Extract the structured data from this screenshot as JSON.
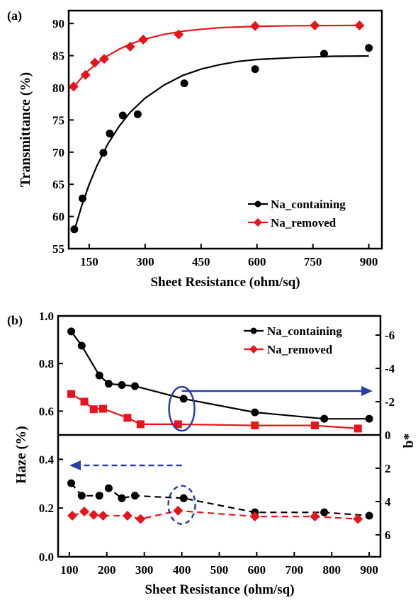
{
  "chart_data": [
    {
      "panel": "(a)",
      "type": "line",
      "xlabel": "Sheet Resistance (ohm/sq)",
      "ylabel": "Transmittance (%)",
      "xlim": [
        95,
        935
      ],
      "ylim": [
        55,
        92
      ],
      "xticks": [
        150,
        300,
        450,
        600,
        750,
        900
      ],
      "yticks": [
        55,
        60,
        65,
        70,
        75,
        80,
        85,
        90
      ],
      "legend_position": "bottom-right",
      "series": [
        {
          "name": "Na_containing",
          "color": "#000000",
          "marker": "circle",
          "points": [
            [
              110,
              58
            ],
            [
              132,
              62.8
            ],
            [
              188,
              69.9
            ],
            [
              205,
              72.9
            ],
            [
              240,
              75.7
            ],
            [
              280,
              75.9
            ],
            [
              405,
              80.7
            ],
            [
              595,
              82.9
            ],
            [
              780,
              85.3
            ],
            [
              900,
              86.2
            ]
          ],
          "fit": [
            [
              110,
              57.8
            ],
            [
              130,
              61.7
            ],
            [
              150,
              65.0
            ],
            [
              170,
              67.8
            ],
            [
              200,
              71.3
            ],
            [
              230,
              74.0
            ],
            [
              260,
              76.2
            ],
            [
              300,
              78.4
            ],
            [
              350,
              80.4
            ],
            [
              400,
              81.9
            ],
            [
              450,
              82.9
            ],
            [
              500,
              83.6
            ],
            [
              550,
              84.1
            ],
            [
              600,
              84.4
            ],
            [
              700,
              84.7
            ],
            [
              800,
              84.9
            ],
            [
              900,
              84.95
            ]
          ]
        },
        {
          "name": "Na_removed",
          "color": "#e8141b",
          "marker": "diamond",
          "points": [
            [
              108,
              80.2
            ],
            [
              140,
              82.0
            ],
            [
              165,
              83.9
            ],
            [
              190,
              84.5
            ],
            [
              260,
              86.4
            ],
            [
              295,
              87.5
            ],
            [
              390,
              88.3
            ],
            [
              595,
              89.6
            ],
            [
              755,
              89.7
            ],
            [
              875,
              89.7
            ]
          ],
          "fit": [
            [
              108,
              80.1
            ],
            [
              130,
              81.6
            ],
            [
              150,
              82.8
            ],
            [
              175,
              84.0
            ],
            [
              200,
              85.0
            ],
            [
              230,
              86.0
            ],
            [
              260,
              86.8
            ],
            [
              300,
              87.6
            ],
            [
              350,
              88.3
            ],
            [
              400,
              88.8
            ],
            [
              450,
              89.1
            ],
            [
              500,
              89.35
            ],
            [
              600,
              89.55
            ],
            [
              700,
              89.65
            ],
            [
              875,
              89.7
            ]
          ]
        }
      ]
    },
    {
      "panel": "(b)",
      "type": "line",
      "xlabel": "Sheet Resistance (ohm/sq)",
      "ylabel": "Haze (%)",
      "y2label": "b*",
      "xlim": [
        70,
        930
      ],
      "xticks": [
        100,
        200,
        300,
        400,
        500,
        600,
        700,
        800,
        900
      ],
      "legend_position": "top-right",
      "upper_left_yticks": [
        "0.6",
        "0.8",
        "1.0"
      ],
      "lower_left_yticks": [
        "0.0",
        "0.2",
        "0.4"
      ],
      "right_yticks": [
        "-6",
        "-4",
        "-2",
        "0",
        "2",
        "4",
        "6"
      ],
      "right_axis_range_top_to_bottom": [
        -7,
        7
      ],
      "series": [
        {
          "name": "Na_containing",
          "axis": "left (Haze, upper panel, solid)",
          "color": "#000000",
          "marker": "circle",
          "points": [
            [
              105,
              0.935
            ],
            [
              133,
              0.875
            ],
            [
              180,
              0.75
            ],
            [
              205,
              0.715
            ],
            [
              240,
              0.71
            ],
            [
              275,
              0.705
            ],
            [
              405,
              0.652
            ],
            [
              595,
              0.595
            ],
            [
              780,
              0.568
            ],
            [
              900,
              0.568
            ]
          ]
        },
        {
          "name": "Na_removed",
          "axis": "left (Haze, upper panel, solid)",
          "color": "#e8141b",
          "marker": "square",
          "points": [
            [
              105,
              0.672
            ],
            [
              140,
              0.64
            ],
            [
              165,
              0.608
            ],
            [
              190,
              0.61
            ],
            [
              255,
              0.572
            ],
            [
              290,
              0.545
            ],
            [
              390,
              0.545
            ],
            [
              595,
              0.54
            ],
            [
              755,
              0.54
            ],
            [
              870,
              0.527
            ]
          ]
        },
        {
          "name": "Na_containing b*",
          "axis": "right (b*, lower panel, dashed)",
          "color": "#000000",
          "marker": "circle",
          "points": [
            [
              105,
              2.9
            ],
            [
              133,
              3.65
            ],
            [
              180,
              3.65
            ],
            [
              205,
              3.2
            ],
            [
              240,
              3.8
            ],
            [
              275,
              3.65
            ],
            [
              405,
              3.8
            ],
            [
              595,
              4.65
            ],
            [
              780,
              4.65
            ],
            [
              900,
              4.85
            ]
          ]
        },
        {
          "name": "Na_removed b*",
          "axis": "right (b*, lower panel, dashed)",
          "color": "#e8141b",
          "marker": "diamond",
          "points": [
            [
              108,
              4.85
            ],
            [
              140,
              4.6
            ],
            [
              165,
              4.8
            ],
            [
              190,
              4.85
            ],
            [
              255,
              4.85
            ],
            [
              290,
              5.05
            ],
            [
              390,
              4.55
            ],
            [
              595,
              4.9
            ],
            [
              755,
              4.9
            ],
            [
              870,
              5.05
            ]
          ]
        }
      ]
    }
  ]
}
